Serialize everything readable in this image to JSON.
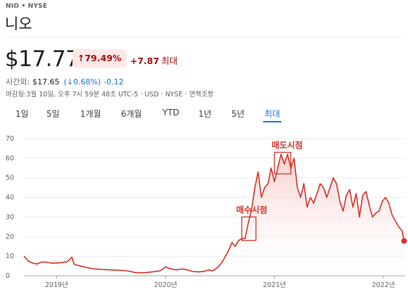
{
  "quote": {
    "ticker": "NIO • NYSE",
    "name": "니오",
    "price": "$17.77",
    "change_pct": "↑79.49%",
    "change_abs": "+7.87",
    "change_period": "최대",
    "after_hours_label": "시간외:",
    "after_hours_price": "$17.65",
    "after_hours_pct": "(↓0.68%)",
    "after_hours_abs": "-0.12",
    "closed_info": "마감됨:3월 10일, 오후 7시 59분 48초 UTC-5 · USD · NYSE · 면책조항"
  },
  "tabs": [
    {
      "label": "1일",
      "active": false
    },
    {
      "label": "5일",
      "active": false
    },
    {
      "label": "1개월",
      "active": false
    },
    {
      "label": "6개월",
      "active": false
    },
    {
      "label": "YTD",
      "active": false
    },
    {
      "label": "1년",
      "active": false
    },
    {
      "label": "5년",
      "active": false
    },
    {
      "label": "최대",
      "active": true
    }
  ],
  "colors": {
    "line": "#d93025",
    "fill_top": "#f8c8c4",
    "annotation": "#d93025",
    "active_tab": "#1a73e8"
  },
  "chart_data": {
    "type": "area",
    "ylim": [
      0,
      70
    ],
    "yticks": [
      "0",
      "10",
      "20",
      "30",
      "40",
      "50",
      "60",
      "70"
    ],
    "xticks": [
      {
        "label": "2019년",
        "x": 2019.0
      },
      {
        "label": "2020년",
        "x": 2020.0
      },
      {
        "label": "2021년",
        "x": 2021.0
      },
      {
        "label": "2022년",
        "x": 2022.0
      }
    ],
    "xlim": [
      2018.7,
      2022.2
    ],
    "series": [
      {
        "x": [
          2018.7,
          2018.74,
          2018.78,
          2018.82,
          2018.86,
          2018.9,
          2018.95,
          2019.0,
          2019.05,
          2019.1,
          2019.14,
          2019.16,
          2019.18,
          2019.22,
          2019.28,
          2019.35,
          2019.42,
          2019.5,
          2019.58,
          2019.65,
          2019.72,
          2019.8,
          2019.88,
          2019.95,
          2020.0,
          2020.05,
          2020.1,
          2020.15,
          2020.2,
          2020.25,
          2020.3,
          2020.35,
          2020.4,
          2020.43,
          2020.46,
          2020.49,
          2020.52,
          2020.55,
          2020.58,
          2020.61,
          2020.64,
          2020.67,
          2020.7,
          2020.73,
          2020.76,
          2020.79,
          2020.82,
          2020.85,
          2020.88,
          2020.91,
          2020.94,
          2020.97,
          2021.0,
          2021.03,
          2021.06,
          2021.09,
          2021.12,
          2021.15,
          2021.18,
          2021.21,
          2021.24,
          2021.27,
          2021.3,
          2021.33,
          2021.36,
          2021.39,
          2021.42,
          2021.45,
          2021.48,
          2021.51,
          2021.54,
          2021.57,
          2021.6,
          2021.63,
          2021.66,
          2021.69,
          2021.72,
          2021.75,
          2021.78,
          2021.81,
          2021.84,
          2021.87,
          2021.9,
          2021.93,
          2021.96,
          2021.99,
          2022.02,
          2022.05,
          2022.08,
          2022.11,
          2022.14,
          2022.17,
          2022.19
        ],
        "values": [
          10,
          7.5,
          6.5,
          6,
          7,
          7,
          6.5,
          6.5,
          6.8,
          7.2,
          9.5,
          6,
          5.5,
          5,
          4.2,
          3.5,
          3.2,
          3,
          2.8,
          2.5,
          1.7,
          1.5,
          2,
          2.5,
          4.5,
          3.5,
          3,
          3.5,
          3,
          2.2,
          2,
          2.2,
          3,
          2.5,
          3.5,
          5,
          7,
          10,
          13,
          17,
          15,
          18,
          19,
          19,
          27,
          34,
          45,
          53,
          40,
          45,
          47,
          55,
          48,
          55,
          62,
          57,
          62,
          55,
          60,
          45,
          40,
          47,
          35,
          40,
          37,
          42,
          47,
          45,
          40,
          45,
          50,
          47,
          38,
          33,
          41,
          44,
          35,
          42,
          30,
          41,
          43,
          36,
          30,
          32,
          33,
          38,
          40,
          37,
          31,
          28,
          25,
          23,
          18
        ]
      }
    ],
    "end_value": 17.77,
    "annotations": [
      {
        "label": "매수시점",
        "x0": 2020.7,
        "x1": 2020.83,
        "y0": 18,
        "y1": 30
      },
      {
        "label": "매도시점",
        "x0": 2021.0,
        "x1": 2021.15,
        "y0": 52,
        "y1": 63
      }
    ]
  }
}
